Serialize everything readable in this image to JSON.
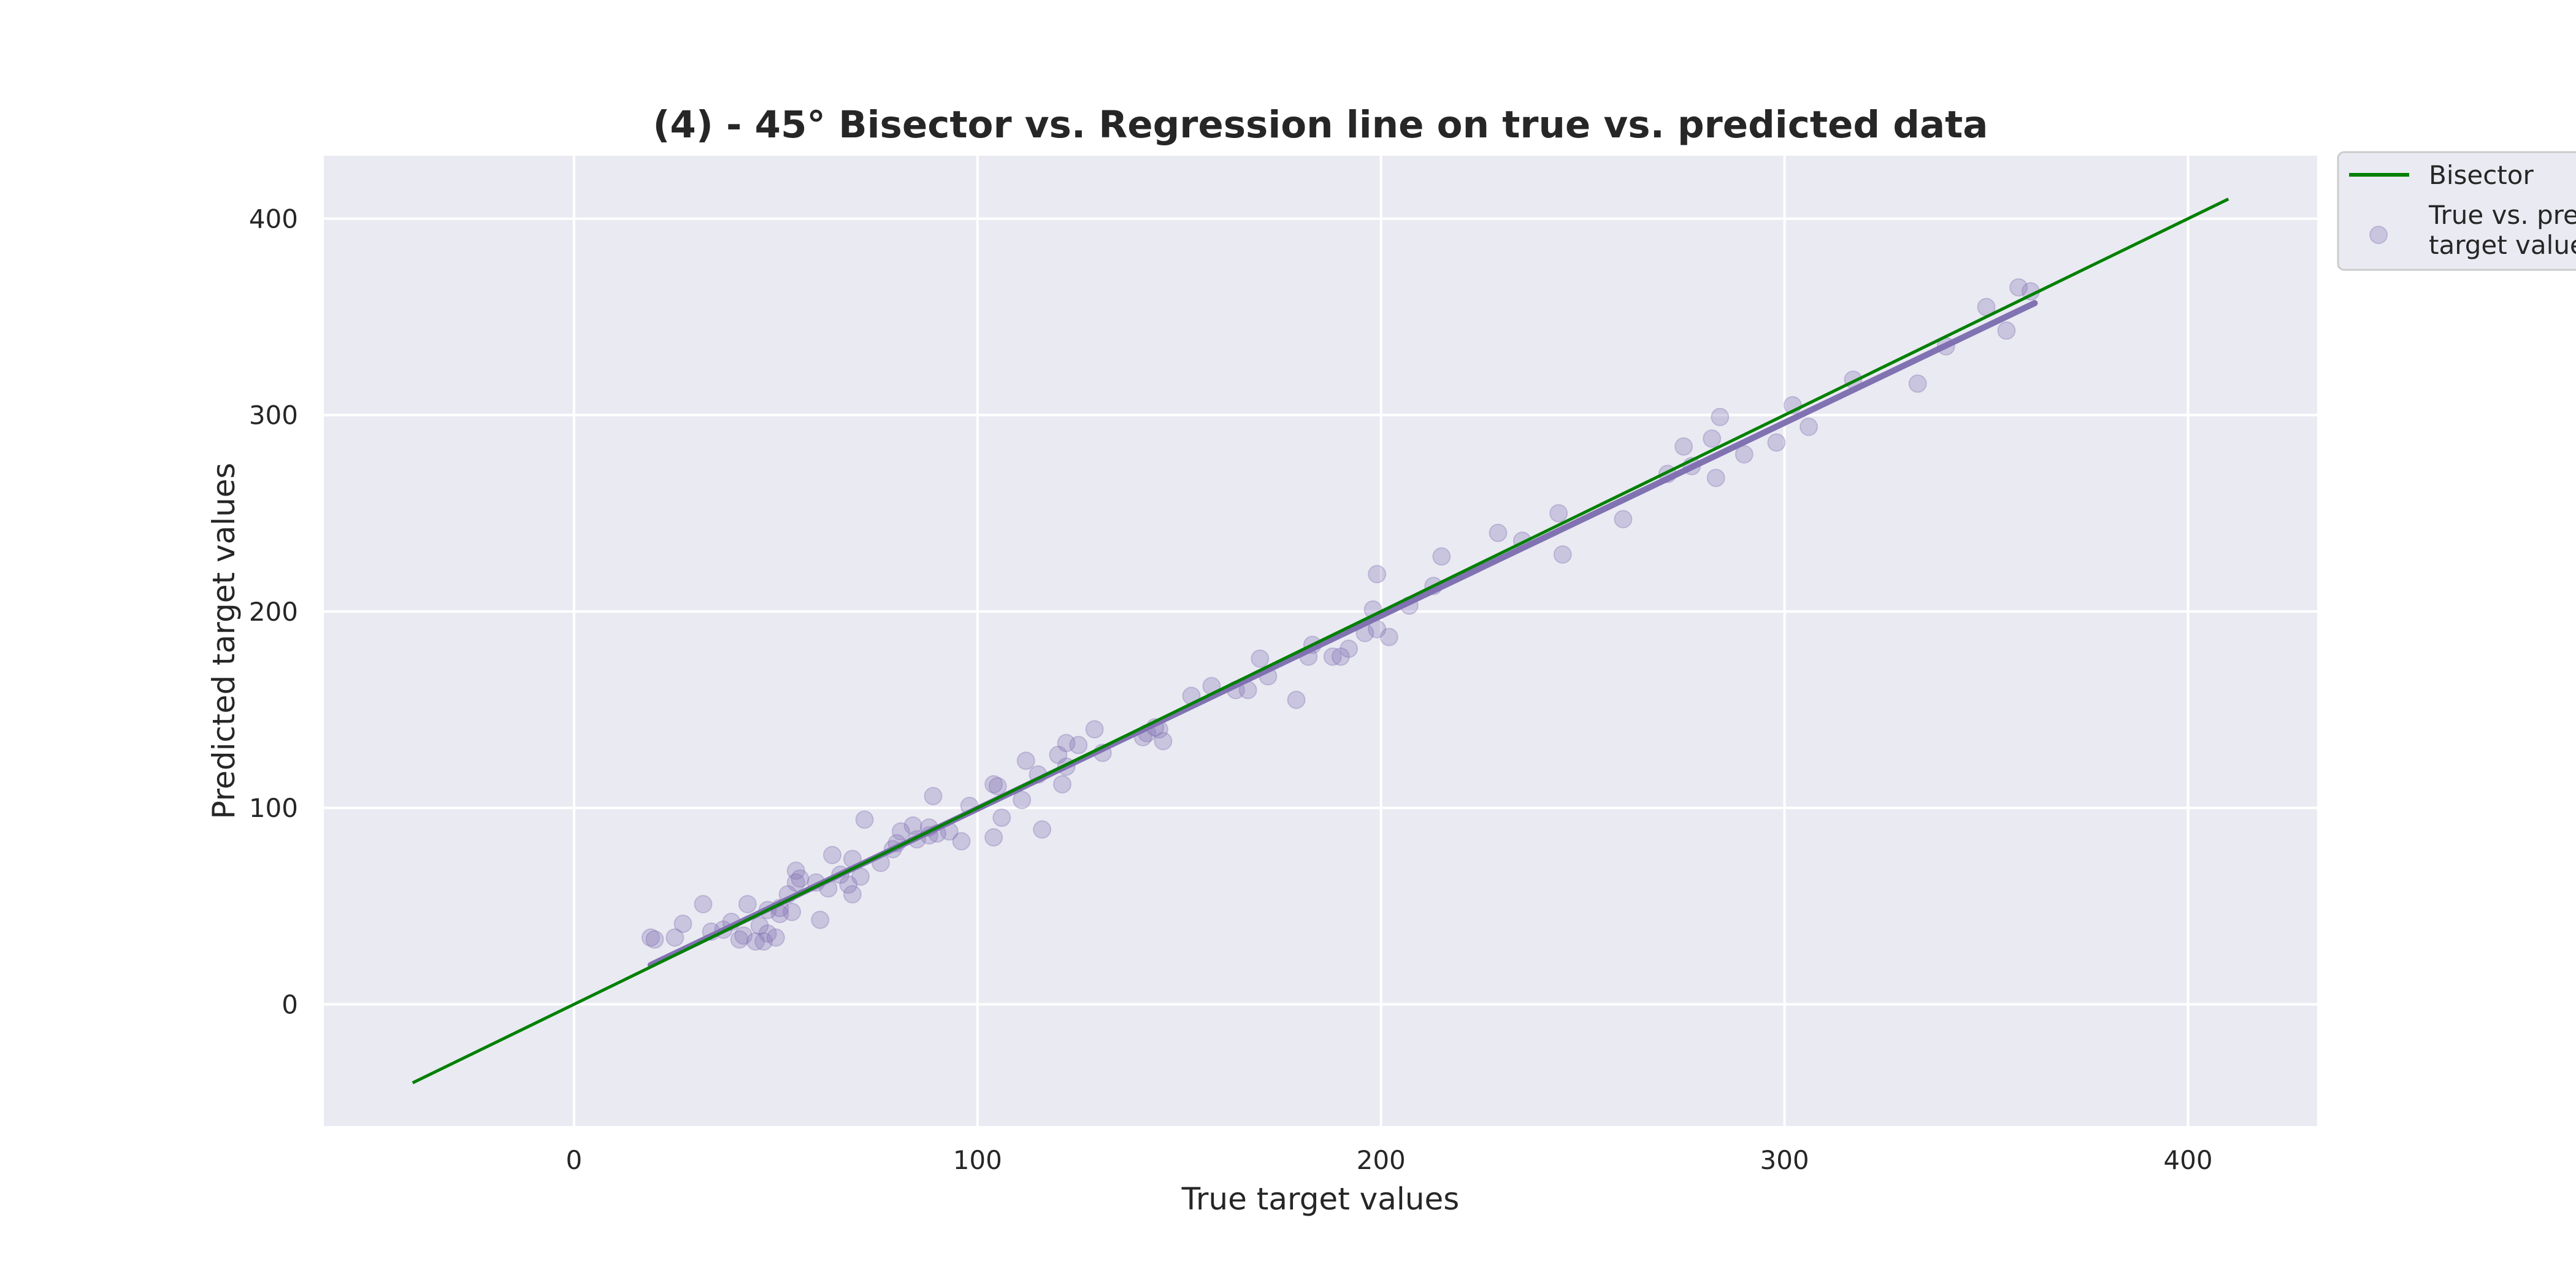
{
  "chart_data": {
    "type": "scatter",
    "title": "(4) - 45° Bisector vs. Regression line on true vs. predicted data",
    "xlabel": "True target values",
    "ylabel": "Predicted target values",
    "xlim": [
      -62,
      432
    ],
    "ylim": [
      -62,
      432
    ],
    "x_ticks": [
      0,
      100,
      200,
      300,
      400
    ],
    "y_ticks": [
      0,
      100,
      200,
      300,
      400
    ],
    "grid": true,
    "legend_position": "outside top-right",
    "legend": [
      {
        "label": "Bisector",
        "marker": "line"
      },
      {
        "label_lines": [
          "True vs. pre",
          "target value"
        ],
        "marker": "circle"
      }
    ],
    "colors": {
      "background": "#eaeaf2",
      "grid": "#ffffff",
      "bisector": "#008000",
      "regression": "#8172b2",
      "points": "#8172b2"
    },
    "series": [
      {
        "name": "Bisector",
        "kind": "line",
        "x": [
          -40,
          410
        ],
        "y": [
          -40,
          410
        ]
      },
      {
        "name": "Regression line",
        "kind": "line",
        "x": [
          19,
          362
        ],
        "y": [
          20,
          357
        ]
      },
      {
        "name": "True vs. predicted target values",
        "kind": "scatter",
        "points": [
          [
            19,
            34
          ],
          [
            20,
            33
          ],
          [
            25,
            34
          ],
          [
            27,
            41
          ],
          [
            32,
            51
          ],
          [
            34,
            37
          ],
          [
            37,
            38
          ],
          [
            39,
            42
          ],
          [
            41,
            33
          ],
          [
            42,
            35
          ],
          [
            43,
            51
          ],
          [
            45,
            32
          ],
          [
            46,
            40
          ],
          [
            47,
            32
          ],
          [
            48,
            36
          ],
          [
            48,
            48
          ],
          [
            50,
            34
          ],
          [
            51,
            46
          ],
          [
            51,
            49
          ],
          [
            53,
            56
          ],
          [
            54,
            47
          ],
          [
            55,
            62
          ],
          [
            55,
            68
          ],
          [
            56,
            64
          ],
          [
            60,
            62
          ],
          [
            61,
            43
          ],
          [
            63,
            59
          ],
          [
            64,
            76
          ],
          [
            66,
            66
          ],
          [
            68,
            61
          ],
          [
            69,
            74
          ],
          [
            69,
            56
          ],
          [
            71,
            65
          ],
          [
            72,
            94
          ],
          [
            76,
            72
          ],
          [
            79,
            79
          ],
          [
            80,
            82
          ],
          [
            81,
            88
          ],
          [
            84,
            91
          ],
          [
            85,
            84
          ],
          [
            88,
            86
          ],
          [
            88,
            90
          ],
          [
            89,
            106
          ],
          [
            90,
            87
          ],
          [
            93,
            88
          ],
          [
            96,
            83
          ],
          [
            98,
            101
          ],
          [
            104,
            85
          ],
          [
            104,
            112
          ],
          [
            105,
            111
          ],
          [
            106,
            95
          ],
          [
            111,
            104
          ],
          [
            112,
            124
          ],
          [
            115,
            117
          ],
          [
            116,
            89
          ],
          [
            120,
            127
          ],
          [
            121,
            112
          ],
          [
            122,
            133
          ],
          [
            122,
            121
          ],
          [
            125,
            132
          ],
          [
            129,
            140
          ],
          [
            131,
            128
          ],
          [
            141,
            136
          ],
          [
            142,
            138
          ],
          [
            144,
            141
          ],
          [
            145,
            140
          ],
          [
            146,
            134
          ],
          [
            153,
            157
          ],
          [
            158,
            162
          ],
          [
            164,
            160
          ],
          [
            167,
            160
          ],
          [
            170,
            176
          ],
          [
            172,
            167
          ],
          [
            179,
            155
          ],
          [
            182,
            177
          ],
          [
            183,
            183
          ],
          [
            188,
            177
          ],
          [
            190,
            177
          ],
          [
            192,
            181
          ],
          [
            196,
            189
          ],
          [
            198,
            201
          ],
          [
            199,
            219
          ],
          [
            199,
            191
          ],
          [
            202,
            187
          ],
          [
            207,
            203
          ],
          [
            213,
            213
          ],
          [
            215,
            228
          ],
          [
            229,
            240
          ],
          [
            235,
            236
          ],
          [
            244,
            250
          ],
          [
            245,
            229
          ],
          [
            260,
            247
          ],
          [
            271,
            270
          ],
          [
            275,
            284
          ],
          [
            277,
            274
          ],
          [
            282,
            288
          ],
          [
            283,
            268
          ],
          [
            284,
            299
          ],
          [
            290,
            280
          ],
          [
            298,
            286
          ],
          [
            302,
            305
          ],
          [
            306,
            294
          ],
          [
            317,
            318
          ],
          [
            333,
            316
          ],
          [
            340,
            335
          ],
          [
            350,
            355
          ],
          [
            355,
            343
          ],
          [
            358,
            365
          ],
          [
            361,
            363
          ]
        ]
      }
    ]
  }
}
